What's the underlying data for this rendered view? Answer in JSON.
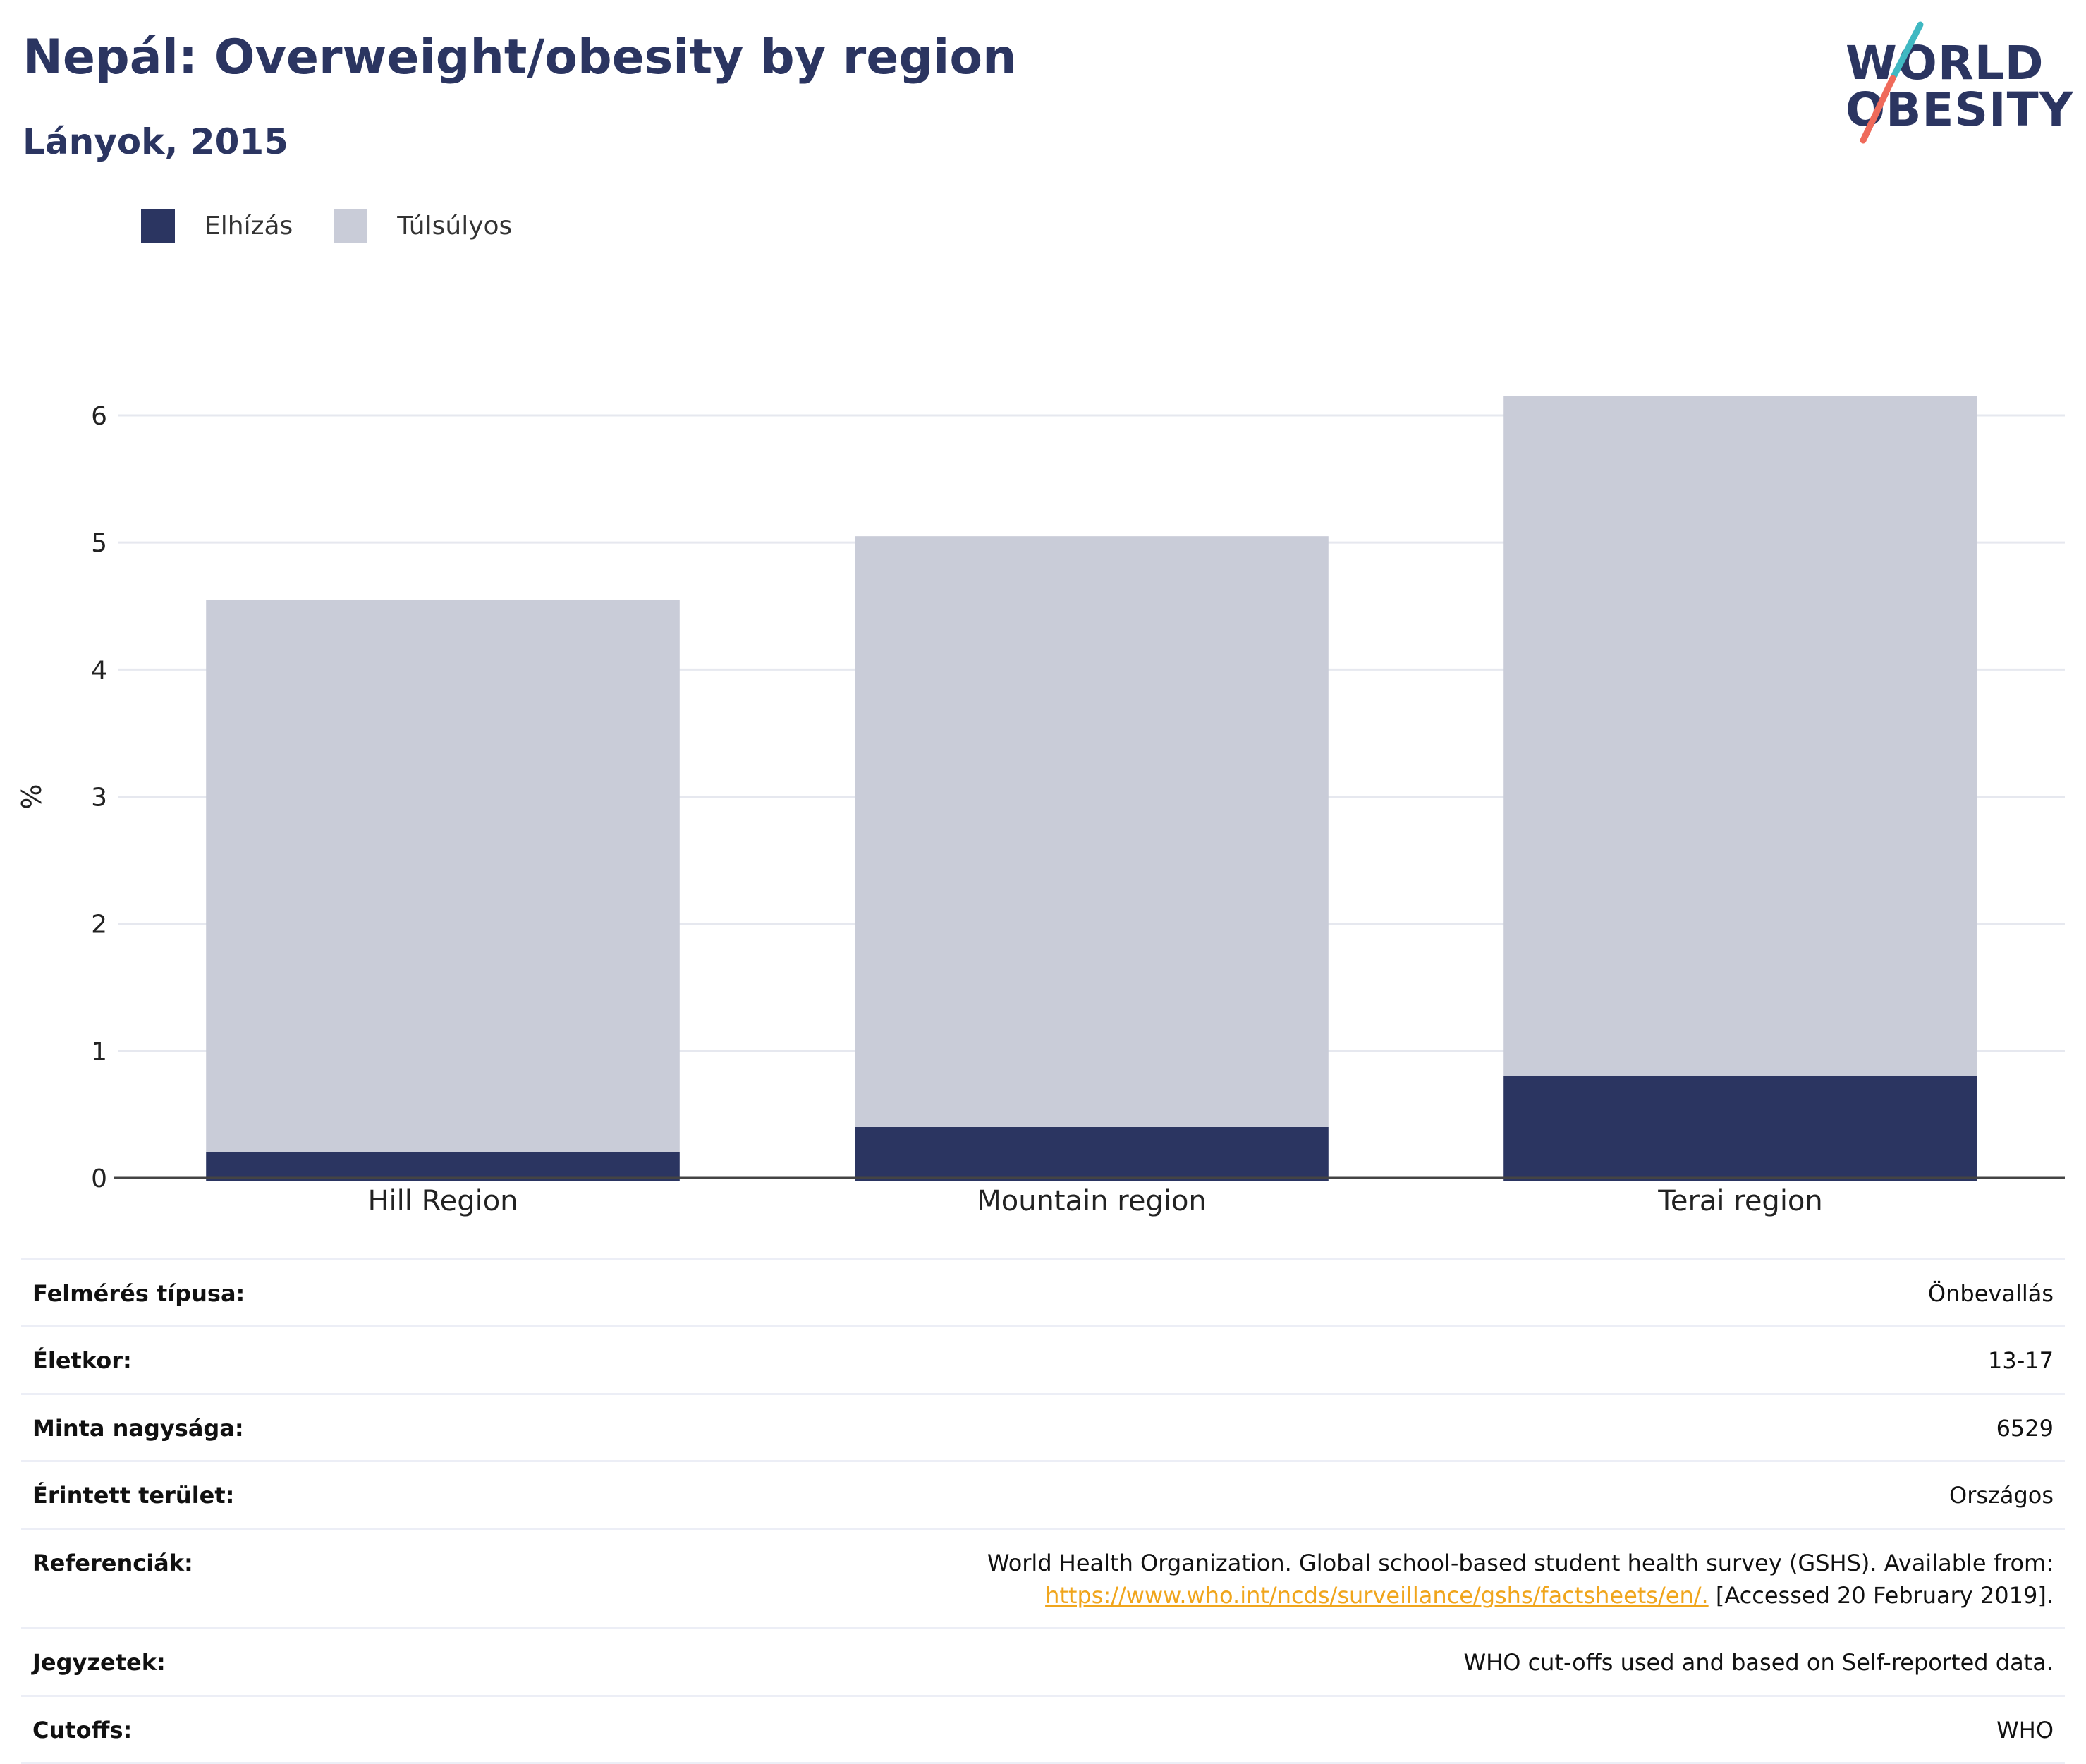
{
  "header": {
    "title": "Nepál: Overweight/obesity by region",
    "subtitle": "Lányok, 2015"
  },
  "logo": {
    "line1": "WORLD",
    "line2": "OBESITY",
    "stripe_color_top": "#3fb8c2",
    "stripe_color_bottom": "#ef6a5a"
  },
  "legend": [
    {
      "label": "Elhízás",
      "color": "#2b3561"
    },
    {
      "label": "Túlsúlyos",
      "color": "#c9ccd8"
    }
  ],
  "chart_data": {
    "type": "bar",
    "stacked": true,
    "categories": [
      "Hill Region",
      "Mountain region",
      "Terai region"
    ],
    "series": [
      {
        "name": "Elhízás",
        "values": [
          0.2,
          0.4,
          0.8
        ],
        "color": "#2b3561"
      },
      {
        "name": "Túlsúlyos",
        "values": [
          4.35,
          4.65,
          5.35
        ],
        "color": "#c9ccd8"
      }
    ],
    "ylabel": "%",
    "ylim": [
      0,
      6.5
    ],
    "yticks": [
      0,
      1,
      2,
      3,
      4,
      5,
      6
    ],
    "grid": true
  },
  "info": {
    "survey_type": {
      "label": "Felmérés típusa:",
      "value": "Önbevallás"
    },
    "age": {
      "label": "Életkor:",
      "value": "13-17"
    },
    "sample_size": {
      "label": "Minta nagysága:",
      "value": "6529"
    },
    "area": {
      "label": "Érintett terület:",
      "value": "Országos"
    },
    "references": {
      "label": "Referenciák:",
      "text": "World Health Organization. Global school-based student health survey (GSHS). Available from:",
      "link": "https://www.who.int/ncds/surveillance/gshs/factsheets/en/.",
      "suffix": " [Accessed 20 February 2019]."
    },
    "notes": {
      "label": "Jegyzetek:",
      "value": "WHO cut-offs used and based on Self-reported data."
    },
    "cutoffs": {
      "label": "Cutoffs:",
      "value": "WHO"
    }
  }
}
